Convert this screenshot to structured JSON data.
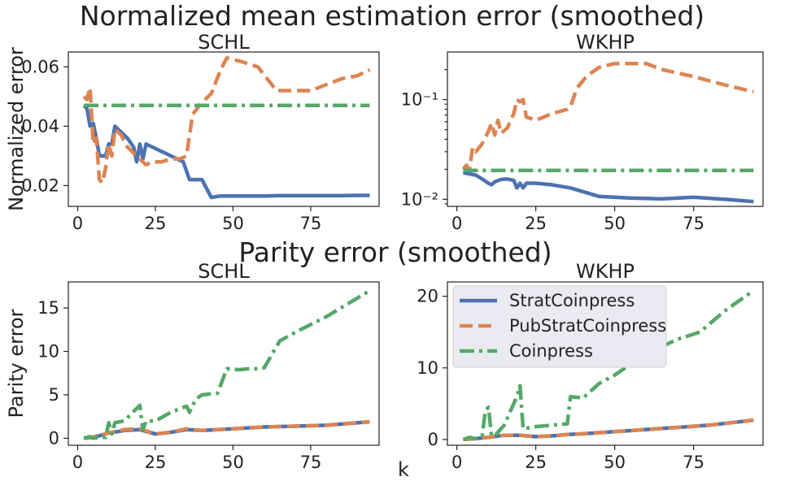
{
  "figure": {
    "suptitle_top": "Normalized mean estimation error (smoothed)",
    "suptitle_bottom": "Parity error (smoothed)",
    "common_xlabel": "k"
  },
  "legend": {
    "placement": "upper-left of bottom-right panel",
    "entries": [
      {
        "label": "StratCoinpress",
        "color": "#4c72b0",
        "style": "solid"
      },
      {
        "label": "PubStratCoinpress",
        "color": "#dd8452",
        "style": "dashed"
      },
      {
        "label": "Coinpress",
        "color": "#55a868",
        "style": "dashdot"
      }
    ]
  },
  "chart_data": [
    {
      "id": "nmee-schl",
      "type": "line",
      "title": "SCHL",
      "ylabel": "Normalized error",
      "xlabel": "",
      "xlim": [
        -3,
        97
      ],
      "ylim": [
        0.013,
        0.065
      ],
      "yscale": "linear",
      "xticks": [
        0,
        25,
        50,
        75
      ],
      "yticks": [
        0.02,
        0.04,
        0.06
      ],
      "ytick_labels": [
        "0.02",
        "0.04",
        "0.06"
      ],
      "series": [
        {
          "name": "StratCoinpress",
          "x": [
            2,
            3,
            4,
            5,
            6,
            7,
            8,
            9,
            10,
            11,
            12,
            14,
            16,
            18,
            19,
            20,
            21,
            22,
            24,
            26,
            28,
            30,
            32,
            34,
            36,
            40,
            43,
            46,
            50,
            55,
            60,
            65,
            70,
            75,
            80,
            85,
            90,
            94
          ],
          "values": [
            0.047,
            0.046,
            0.04,
            0.041,
            0.036,
            0.03,
            0.03,
            0.03,
            0.034,
            0.034,
            0.04,
            0.038,
            0.036,
            0.033,
            0.028,
            0.034,
            0.029,
            0.034,
            0.033,
            0.032,
            0.031,
            0.03,
            0.029,
            0.028,
            0.022,
            0.022,
            0.016,
            0.0165,
            0.0165,
            0.0165,
            0.0165,
            0.0166,
            0.0166,
            0.0166,
            0.0166,
            0.0166,
            0.0167,
            0.0167
          ]
        },
        {
          "name": "PubStratCoinpress",
          "x": [
            2,
            3,
            4,
            5,
            6,
            7,
            8,
            9,
            10,
            11,
            12,
            14,
            16,
            18,
            20,
            22,
            24,
            27,
            30,
            33,
            35,
            37,
            40,
            43,
            46,
            48,
            52,
            58,
            64,
            70,
            75,
            80,
            85,
            90,
            94
          ],
          "values": [
            0.05,
            0.049,
            0.053,
            0.034,
            0.036,
            0.022,
            0.021,
            0.026,
            0.034,
            0.03,
            0.039,
            0.037,
            0.033,
            0.031,
            0.029,
            0.027,
            0.028,
            0.028,
            0.029,
            0.029,
            0.03,
            0.044,
            0.048,
            0.051,
            0.059,
            0.063,
            0.062,
            0.06,
            0.052,
            0.052,
            0.052,
            0.054,
            0.056,
            0.057,
            0.059
          ]
        },
        {
          "name": "Coinpress",
          "x": [
            2,
            94
          ],
          "values": [
            0.047,
            0.047
          ]
        }
      ]
    },
    {
      "id": "nmee-wkhp",
      "type": "line",
      "title": "WKHP",
      "ylabel": "",
      "xlabel": "",
      "xlim": [
        -3,
        97
      ],
      "ylim": [
        0.0085,
        0.3
      ],
      "yscale": "log",
      "xticks": [
        0,
        25,
        50,
        75
      ],
      "yticks": [
        0.01,
        0.1
      ],
      "ytick_labels": [
        "10⁻²",
        "10⁻¹"
      ],
      "series": [
        {
          "name": "StratCoinpress",
          "x": [
            2,
            4,
            6,
            8,
            10,
            11,
            12,
            14,
            16,
            18,
            19,
            20,
            21,
            22,
            25,
            30,
            36,
            45,
            55,
            65,
            75,
            85,
            94
          ],
          "values": [
            0.0185,
            0.018,
            0.0175,
            0.016,
            0.0145,
            0.014,
            0.015,
            0.0158,
            0.016,
            0.0155,
            0.013,
            0.0145,
            0.013,
            0.0145,
            0.0145,
            0.014,
            0.013,
            0.0107,
            0.0103,
            0.0101,
            0.0105,
            0.01,
            0.0095
          ]
        },
        {
          "name": "PubStratCoinpress",
          "x": [
            2,
            3,
            4,
            5,
            6,
            8,
            10,
            11,
            12,
            13,
            14,
            16,
            18,
            19,
            20,
            21,
            22,
            25,
            30,
            35,
            36,
            38,
            41,
            45,
            50,
            55,
            60,
            65,
            75,
            85,
            94
          ],
          "values": [
            0.02,
            0.022,
            0.02,
            0.033,
            0.03,
            0.036,
            0.048,
            0.058,
            0.044,
            0.062,
            0.046,
            0.052,
            0.072,
            0.1,
            0.095,
            0.1,
            0.067,
            0.062,
            0.072,
            0.08,
            0.085,
            0.13,
            0.17,
            0.21,
            0.23,
            0.23,
            0.23,
            0.2,
            0.17,
            0.14,
            0.12
          ]
        },
        {
          "name": "Coinpress",
          "x": [
            2,
            94
          ],
          "values": [
            0.0195,
            0.0195
          ]
        }
      ]
    },
    {
      "id": "parity-schl",
      "type": "line",
      "title": "SCHL",
      "ylabel": "Parity error",
      "xlabel": "",
      "xlim": [
        -3,
        97
      ],
      "ylim": [
        -0.8,
        18
      ],
      "yscale": "linear",
      "xticks": [
        0,
        25,
        50,
        75
      ],
      "yticks": [
        0,
        5,
        10,
        15
      ],
      "ytick_labels": [
        "0",
        "5",
        "10",
        "15"
      ],
      "series": [
        {
          "name": "StratCoinpress",
          "x": [
            2,
            5,
            10,
            15,
            20,
            25,
            30,
            35,
            40,
            50,
            60,
            70,
            80,
            94
          ],
          "values": [
            0.0,
            0.1,
            0.6,
            0.9,
            1.0,
            0.5,
            0.7,
            1.0,
            0.9,
            1.1,
            1.3,
            1.4,
            1.5,
            1.9
          ]
        },
        {
          "name": "PubStratCoinpress",
          "x": [
            2,
            5,
            10,
            15,
            20,
            25,
            30,
            35,
            40,
            50,
            60,
            70,
            80,
            94
          ],
          "values": [
            0.0,
            0.15,
            0.6,
            1.0,
            1.1,
            0.5,
            0.7,
            1.1,
            0.9,
            1.1,
            1.3,
            1.4,
            1.5,
            1.9
          ]
        },
        {
          "name": "Coinpress",
          "x": [
            2,
            4,
            5,
            7,
            9,
            10,
            11,
            12,
            15,
            20,
            21,
            22,
            25,
            30,
            35,
            36,
            38,
            40,
            45,
            48,
            52,
            55,
            58,
            60,
            65,
            70,
            80,
            94
          ],
          "values": [
            0.0,
            0.2,
            0.0,
            0.1,
            0.1,
            1.8,
            0.5,
            1.8,
            2.0,
            3.8,
            1.0,
            2.0,
            2.0,
            3.0,
            3.7,
            3.0,
            4.5,
            5.0,
            5.2,
            8.0,
            7.9,
            8.0,
            8.0,
            8.1,
            11.2,
            12.2,
            14.0,
            17.0
          ]
        }
      ]
    },
    {
      "id": "parity-wkhp",
      "type": "line",
      "title": "WKHP",
      "ylabel": "",
      "xlabel": "",
      "xlim": [
        -3,
        97
      ],
      "ylim": [
        -0.8,
        22
      ],
      "yscale": "linear",
      "xticks": [
        0,
        25,
        50,
        75
      ],
      "yticks": [
        0,
        10,
        20
      ],
      "ytick_labels": [
        "0",
        "10",
        "20"
      ],
      "series": [
        {
          "name": "StratCoinpress",
          "x": [
            2,
            5,
            10,
            15,
            20,
            25,
            30,
            35,
            40,
            50,
            60,
            70,
            80,
            94
          ],
          "values": [
            0.0,
            0.1,
            0.3,
            0.6,
            0.6,
            0.4,
            0.5,
            0.7,
            0.8,
            1.1,
            1.4,
            1.7,
            2.0,
            2.7
          ]
        },
        {
          "name": "PubStratCoinpress",
          "x": [
            2,
            5,
            10,
            15,
            20,
            25,
            30,
            35,
            40,
            50,
            60,
            70,
            80,
            94
          ],
          "values": [
            0.0,
            0.1,
            0.3,
            0.6,
            0.6,
            0.4,
            0.5,
            0.7,
            0.8,
            1.1,
            1.4,
            1.7,
            2.0,
            2.7
          ]
        },
        {
          "name": "Coinpress",
          "x": [
            2,
            4,
            6,
            8,
            9,
            10,
            11,
            12,
            15,
            19,
            20,
            21,
            25,
            30,
            35,
            36,
            40,
            45,
            50,
            55,
            60,
            65,
            70,
            77,
            85,
            94
          ],
          "values": [
            0.0,
            0.3,
            0.1,
            0.5,
            4.0,
            4.5,
            0.5,
            0.5,
            2.0,
            6.0,
            7.5,
            1.5,
            1.8,
            2.0,
            2.2,
            6.0,
            5.8,
            7.8,
            9.0,
            10.5,
            12.0,
            13.0,
            14.0,
            15.0,
            18.0,
            20.8
          ]
        }
      ]
    }
  ]
}
